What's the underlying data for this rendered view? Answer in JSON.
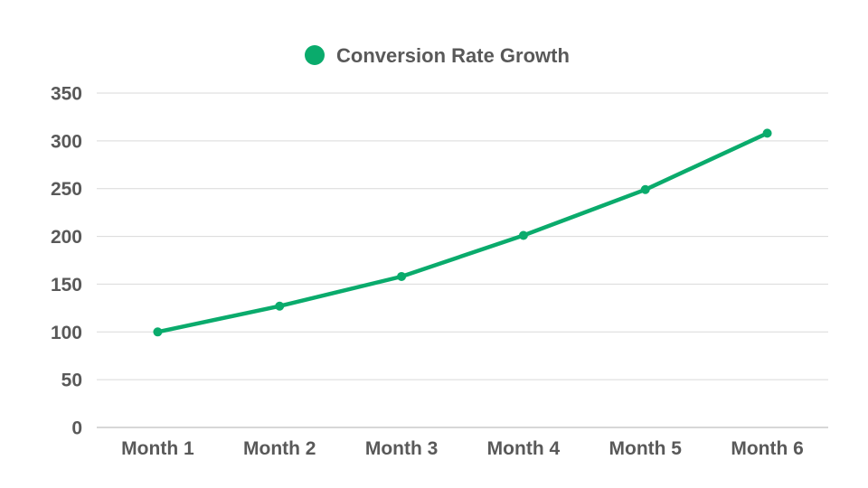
{
  "chart_data": {
    "type": "line",
    "title": "",
    "xlabel": "",
    "ylabel": "",
    "categories": [
      "Month 1",
      "Month 2",
      "Month 3",
      "Month 4",
      "Month 5",
      "Month 6"
    ],
    "series": [
      {
        "name": "Conversion Rate Growth",
        "values": [
          100,
          127,
          158,
          201,
          249,
          308
        ],
        "color": "#0aab6c"
      }
    ],
    "ylim": [
      0,
      350
    ],
    "yticks": [
      0,
      50,
      100,
      150,
      200,
      250,
      300,
      350
    ],
    "grid": true,
    "legend_position": "top"
  }
}
